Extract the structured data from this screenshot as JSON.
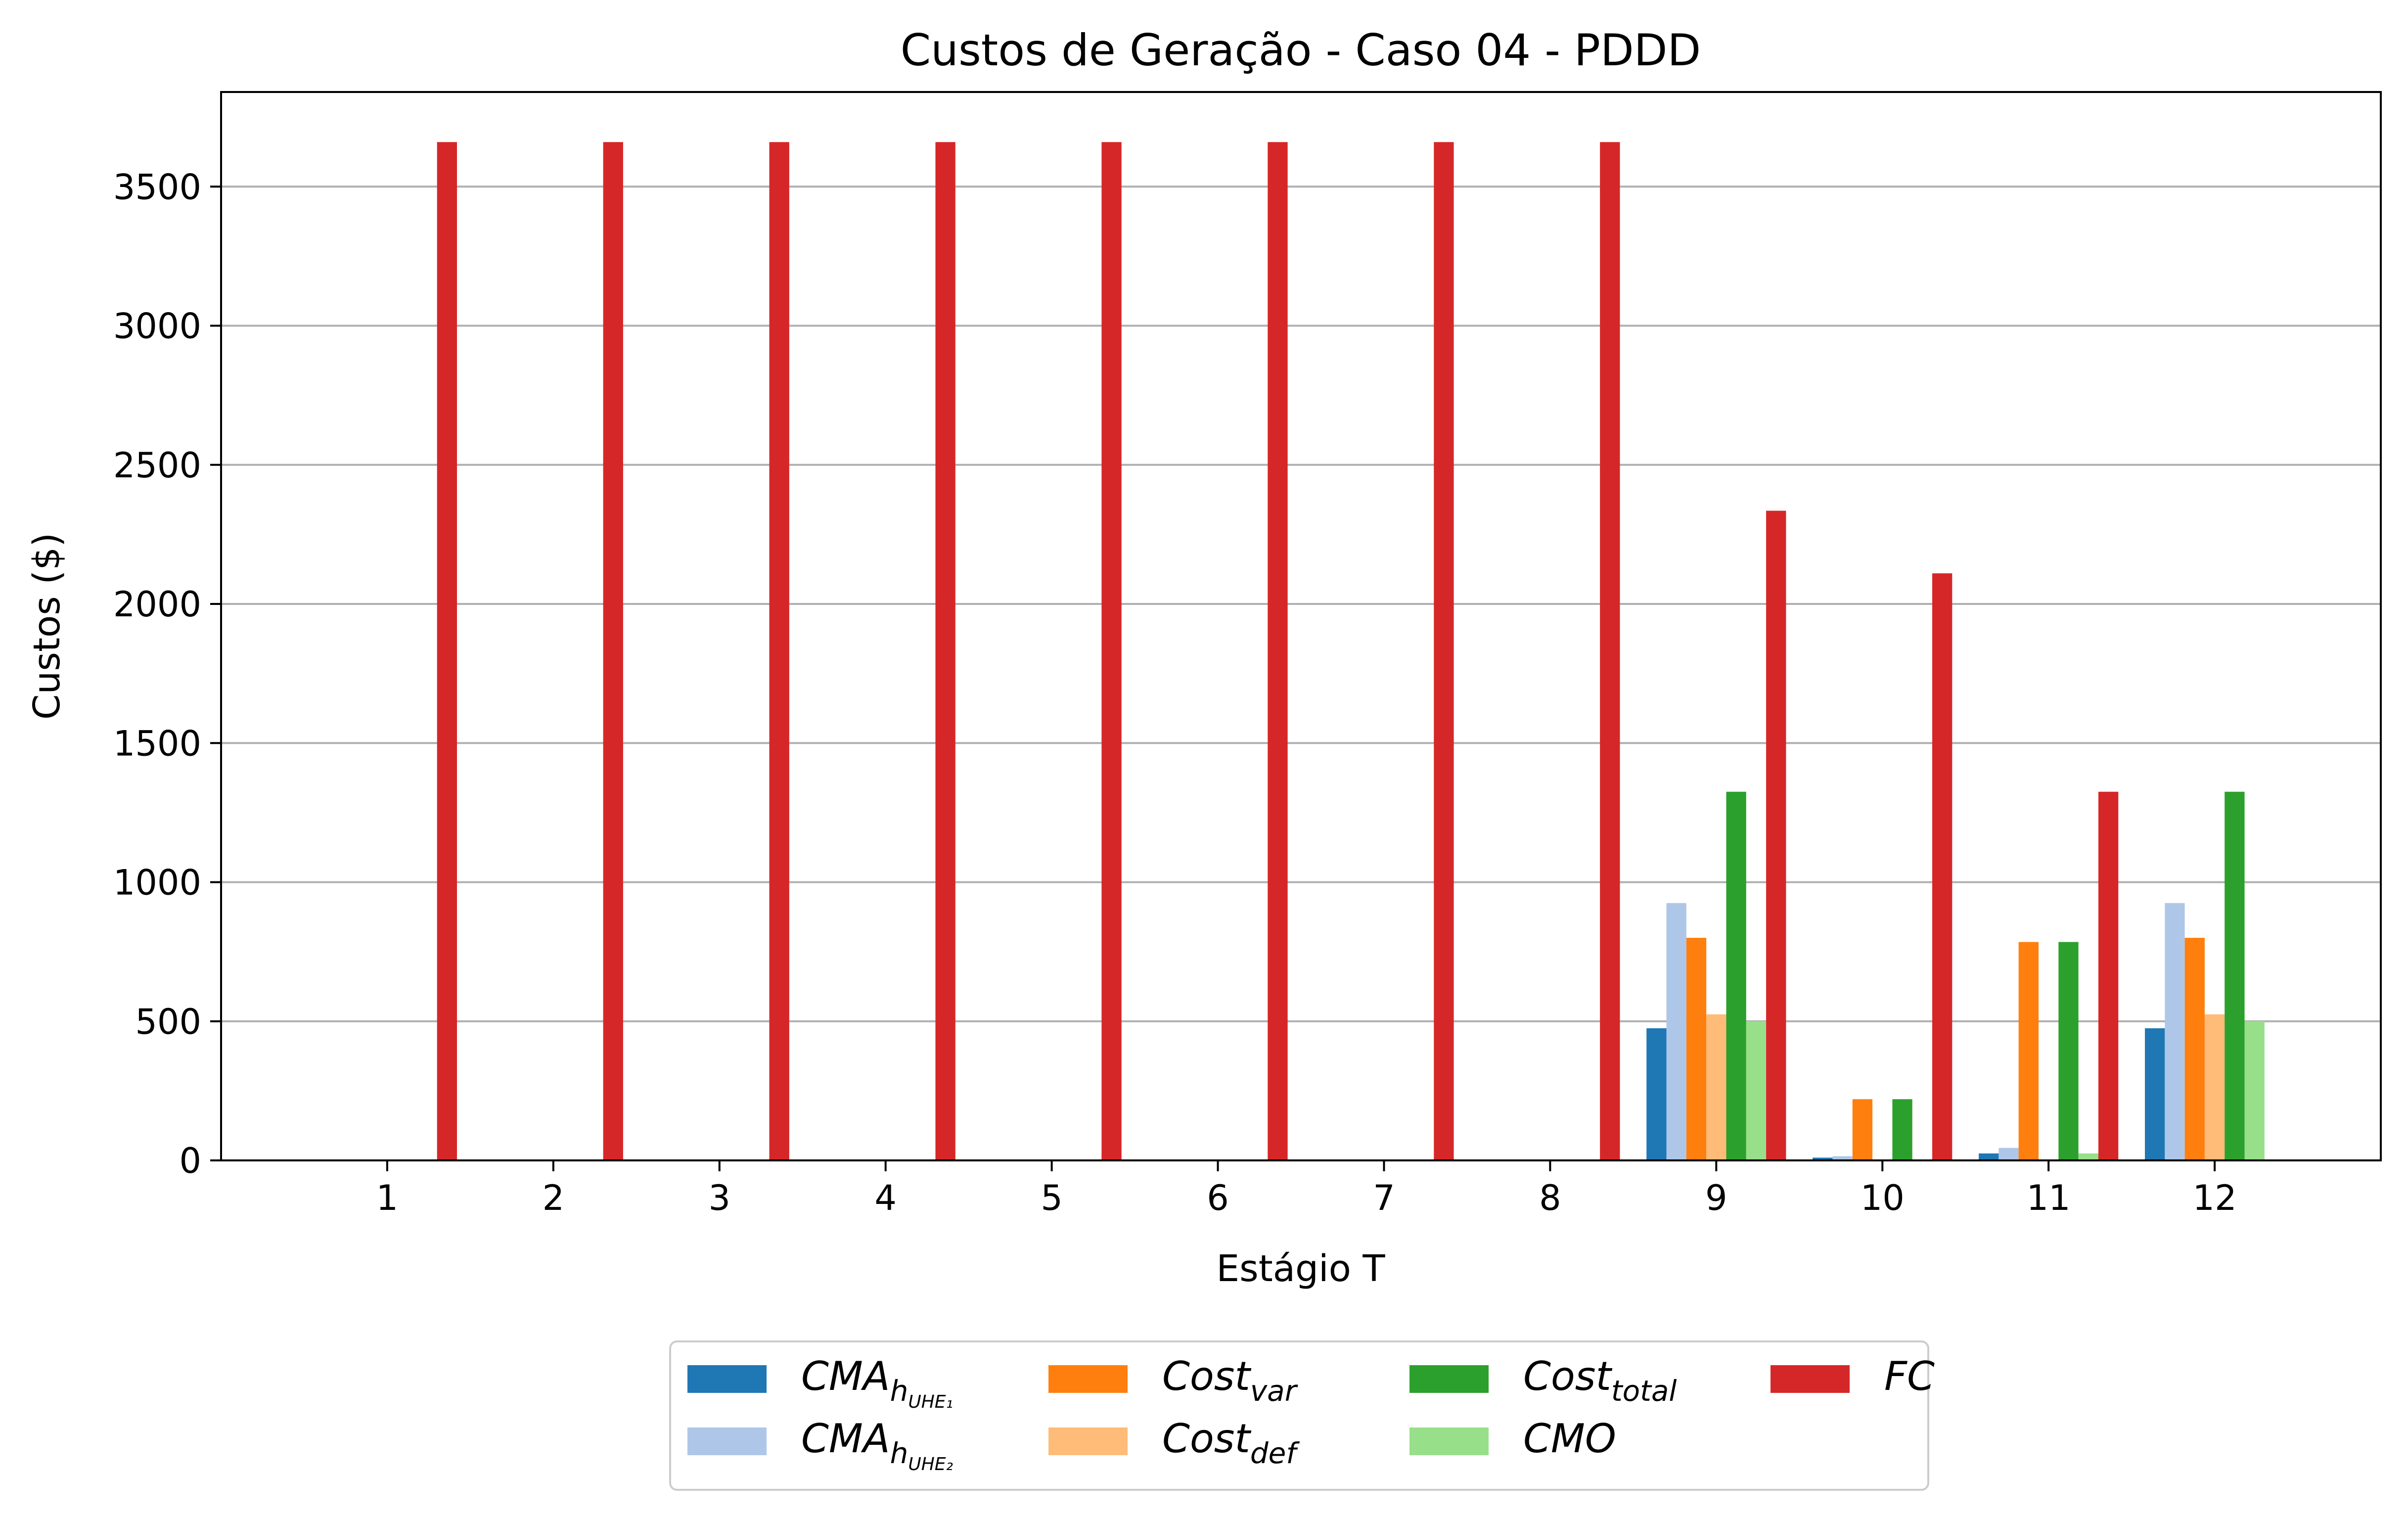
{
  "chart_data": {
    "type": "bar",
    "title": "Custos de Geração - Caso 04 - PDDD",
    "xlabel": "Estágio T",
    "ylabel": "Custos ($)",
    "ylim": [
      0,
      3840
    ],
    "yticks": [
      "0",
      "500",
      "1000",
      "1500",
      "2000",
      "2500",
      "3000",
      "3500"
    ],
    "grid": "y",
    "legend_placement": "bottom-center",
    "categories": [
      "1",
      "2",
      "3",
      "4",
      "5",
      "6",
      "7",
      "8",
      "9",
      "10",
      "11",
      "12"
    ],
    "series": [
      {
        "key": "cma1",
        "main": "CMA",
        "sub": "h",
        "subsub": "UHE₁",
        "color": "#1f77b4",
        "values": [
          0,
          0,
          0,
          0,
          0,
          0,
          0,
          0,
          475,
          10,
          25,
          475
        ]
      },
      {
        "key": "cma2",
        "main": "CMA",
        "sub": "h",
        "subsub": "UHE₂",
        "color": "#aec7e8",
        "values": [
          0,
          0,
          0,
          0,
          0,
          0,
          0,
          0,
          925,
          15,
          45,
          925
        ]
      },
      {
        "key": "costvar",
        "main": "Cost",
        "sub": "var",
        "subsub": "",
        "color": "#ff7f0e",
        "values": [
          0,
          0,
          0,
          0,
          0,
          0,
          0,
          0,
          800,
          220,
          785,
          800
        ]
      },
      {
        "key": "costdef",
        "main": "Cost",
        "sub": "def",
        "subsub": "",
        "color": "#ffbb78",
        "values": [
          0,
          0,
          0,
          0,
          0,
          0,
          0,
          0,
          525,
          0,
          0,
          525
        ]
      },
      {
        "key": "costtotal",
        "main": "Cost",
        "sub": "total",
        "subsub": "",
        "color": "#2ca02c",
        "values": [
          0,
          0,
          0,
          0,
          0,
          0,
          0,
          0,
          1325,
          220,
          785,
          1325
        ]
      },
      {
        "key": "cmo",
        "main": "CMO",
        "sub": "",
        "subsub": "",
        "color": "#98df8a",
        "values": [
          0,
          0,
          0,
          0,
          0,
          0,
          0,
          0,
          500,
          0,
          25,
          500
        ]
      },
      {
        "key": "fc",
        "main": "FC",
        "sub": "",
        "subsub": "",
        "color": "#d62728",
        "values": [
          3660,
          3660,
          3660,
          3660,
          3660,
          3660,
          3660,
          3660,
          2335,
          2110,
          1325,
          0
        ]
      }
    ]
  }
}
